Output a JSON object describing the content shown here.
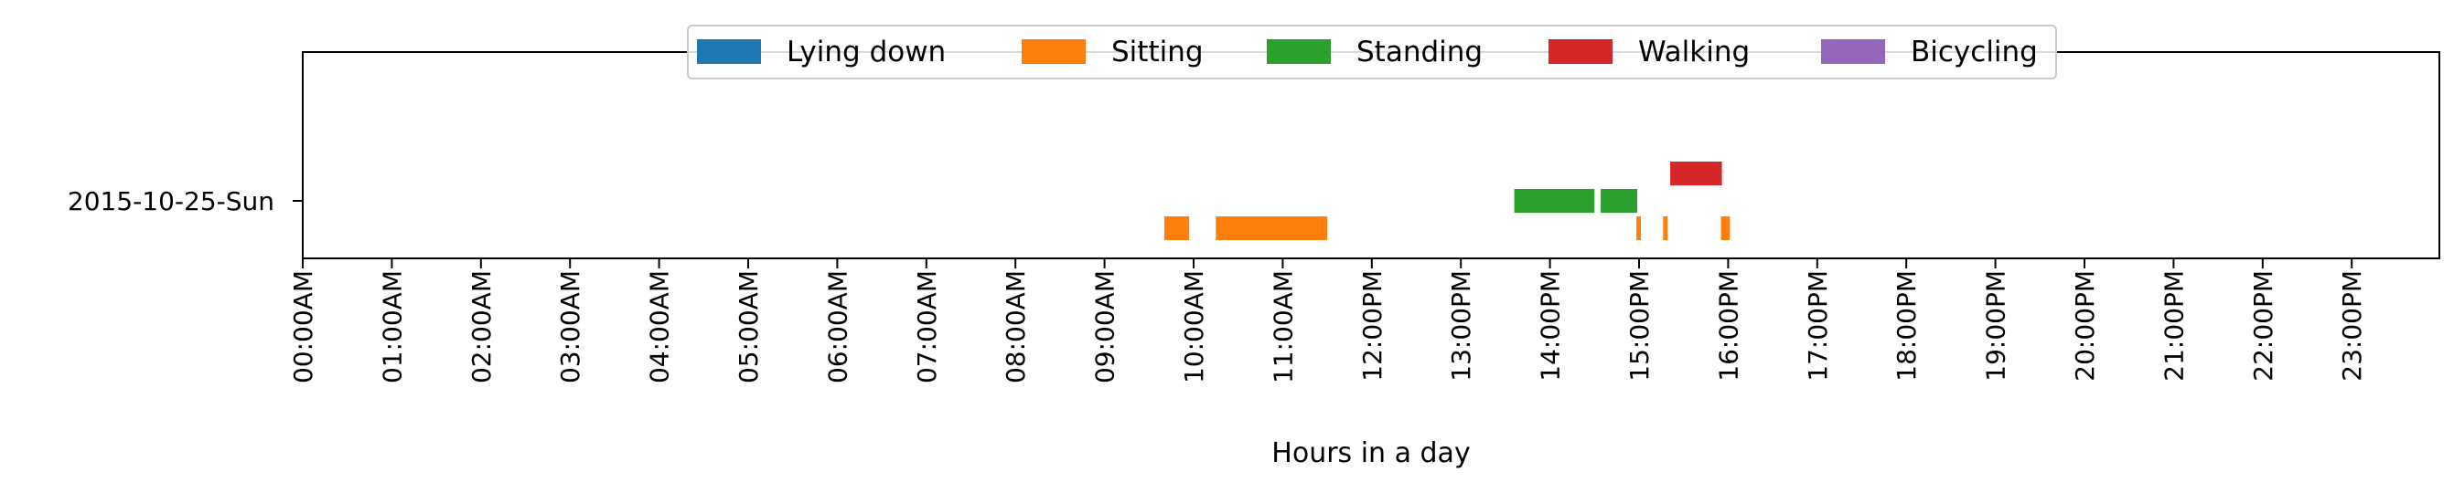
{
  "chart_data": {
    "type": "timeline",
    "title": "",
    "xlabel": "Hours in a day",
    "ylabel": "",
    "xlim": [
      0,
      24
    ],
    "x_tick_labels": [
      "00:00AM",
      "01:00AM",
      "02:00AM",
      "03:00AM",
      "04:00AM",
      "05:00AM",
      "06:00AM",
      "07:00AM",
      "08:00AM",
      "09:00AM",
      "10:00AM",
      "11:00AM",
      "12:00PM",
      "13:00PM",
      "14:00PM",
      "15:00PM",
      "16:00PM",
      "17:00PM",
      "18:00PM",
      "19:00PM",
      "20:00PM",
      "21:00PM",
      "22:00PM",
      "23:00PM"
    ],
    "rows": [
      "2015-10-25-Sun"
    ],
    "grid": false,
    "legend_position": "top-center",
    "legend": [
      {
        "name": "Lying down",
        "color": "#1f77b4"
      },
      {
        "name": "Sitting",
        "color": "#ff7f0e"
      },
      {
        "name": "Standing",
        "color": "#2ca02c"
      },
      {
        "name": "Walking",
        "color": "#d62728"
      },
      {
        "name": "Bicycling",
        "color": "#9467bd"
      }
    ],
    "series": [
      {
        "name": "Lying down",
        "level": 0,
        "segments": []
      },
      {
        "name": "Sitting",
        "level": -1,
        "segments": [
          [
            9.67,
            9.95
          ],
          [
            10.25,
            11.5
          ],
          [
            14.97,
            15.02
          ],
          [
            15.27,
            15.32
          ],
          [
            15.92,
            16.02
          ]
        ]
      },
      {
        "name": "Standing",
        "level": 0,
        "segments": [
          [
            13.6,
            14.5
          ],
          [
            14.57,
            14.98
          ]
        ]
      },
      {
        "name": "Walking",
        "level": 1,
        "segments": [
          [
            15.35,
            15.93
          ]
        ]
      },
      {
        "name": "Bicycling",
        "level": 0,
        "segments": []
      }
    ]
  }
}
